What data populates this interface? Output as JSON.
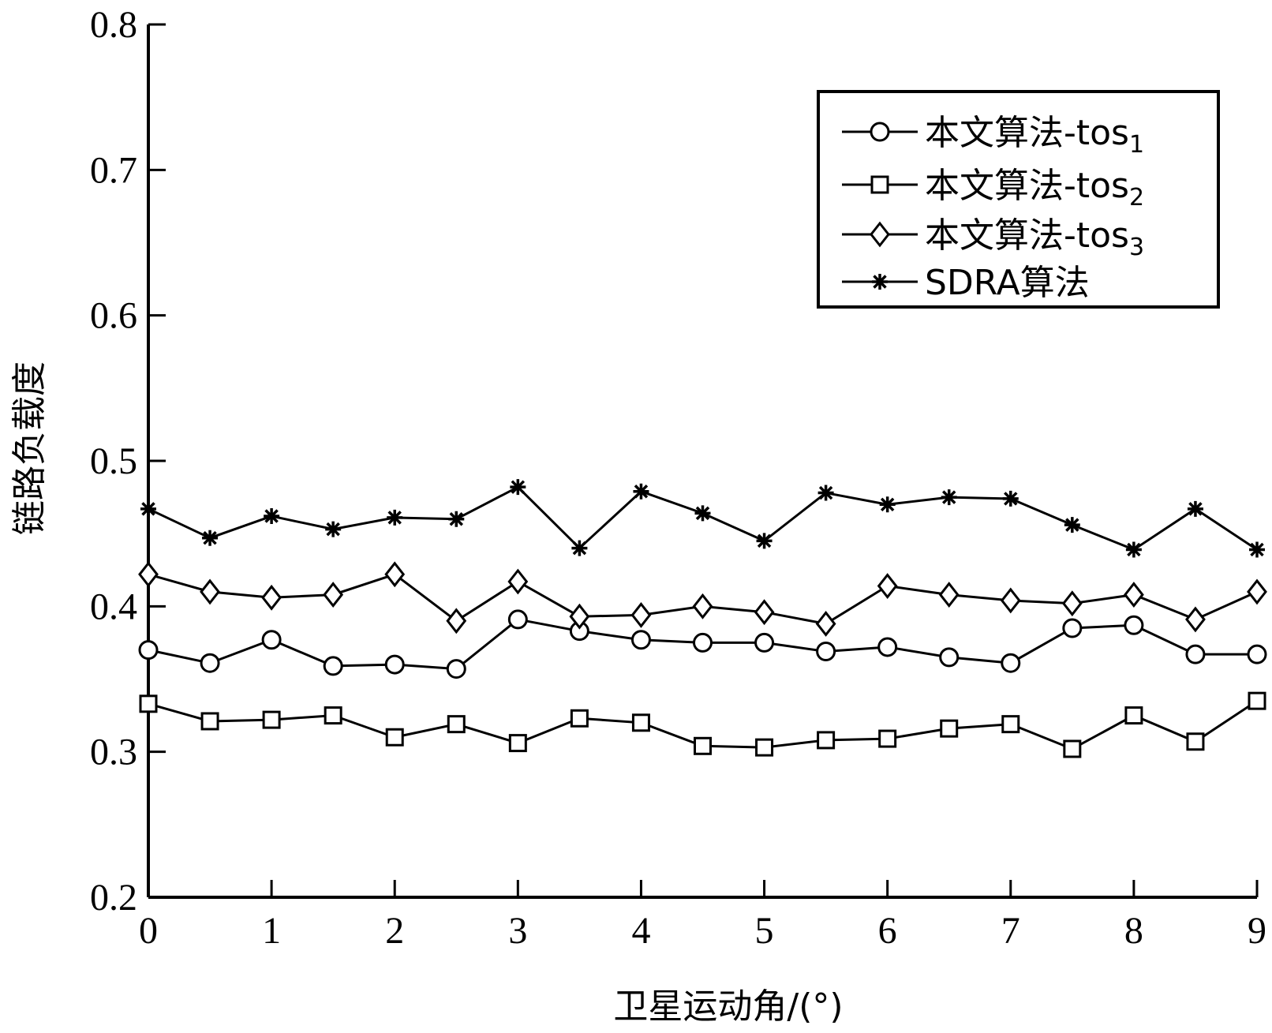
{
  "chart_data": {
    "type": "line",
    "xlabel": "卫星运动角/(°)",
    "ylabel": "链路负载度",
    "xlim": [
      0,
      9
    ],
    "ylim": [
      0.2,
      0.8
    ],
    "xticks": [
      "0",
      "1",
      "2",
      "3",
      "4",
      "5",
      "6",
      "7",
      "8",
      "9"
    ],
    "yticks": [
      "0.2",
      "0.3",
      "0.4",
      "0.5",
      "0.6",
      "0.7",
      "0.8"
    ],
    "x": [
      0,
      0.5,
      1,
      1.5,
      2,
      2.5,
      3,
      3.5,
      4,
      4.5,
      5,
      5.5,
      6,
      6.5,
      7,
      7.5,
      8,
      8.5,
      9
    ],
    "grid": false,
    "legend_position": "top-right",
    "series": [
      {
        "name": "本文算法-tos",
        "name_sub": "1",
        "marker": "circle",
        "values": [
          0.37,
          0.361,
          0.377,
          0.359,
          0.36,
          0.357,
          0.391,
          0.383,
          0.377,
          0.375,
          0.375,
          0.369,
          0.372,
          0.365,
          0.361,
          0.385,
          0.387,
          0.367,
          0.367
        ]
      },
      {
        "name": "本文算法-tos",
        "name_sub": "2",
        "marker": "square",
        "values": [
          0.333,
          0.321,
          0.322,
          0.325,
          0.31,
          0.319,
          0.306,
          0.323,
          0.32,
          0.304,
          0.303,
          0.308,
          0.309,
          0.316,
          0.319,
          0.302,
          0.325,
          0.307,
          0.335
        ]
      },
      {
        "name": "本文算法-tos",
        "name_sub": "3",
        "marker": "diamond",
        "values": [
          0.422,
          0.41,
          0.406,
          0.408,
          0.422,
          0.39,
          0.417,
          0.393,
          0.394,
          0.4,
          0.396,
          0.388,
          0.414,
          0.408,
          0.404,
          0.402,
          0.408,
          0.391,
          0.41
        ]
      },
      {
        "name": "SDRA算法",
        "name_sub": "",
        "marker": "asterisk",
        "values": [
          0.467,
          0.447,
          0.462,
          0.453,
          0.461,
          0.46,
          0.482,
          0.44,
          0.479,
          0.464,
          0.445,
          0.478,
          0.47,
          0.475,
          0.474,
          0.456,
          0.439,
          0.467,
          0.439
        ]
      }
    ]
  }
}
